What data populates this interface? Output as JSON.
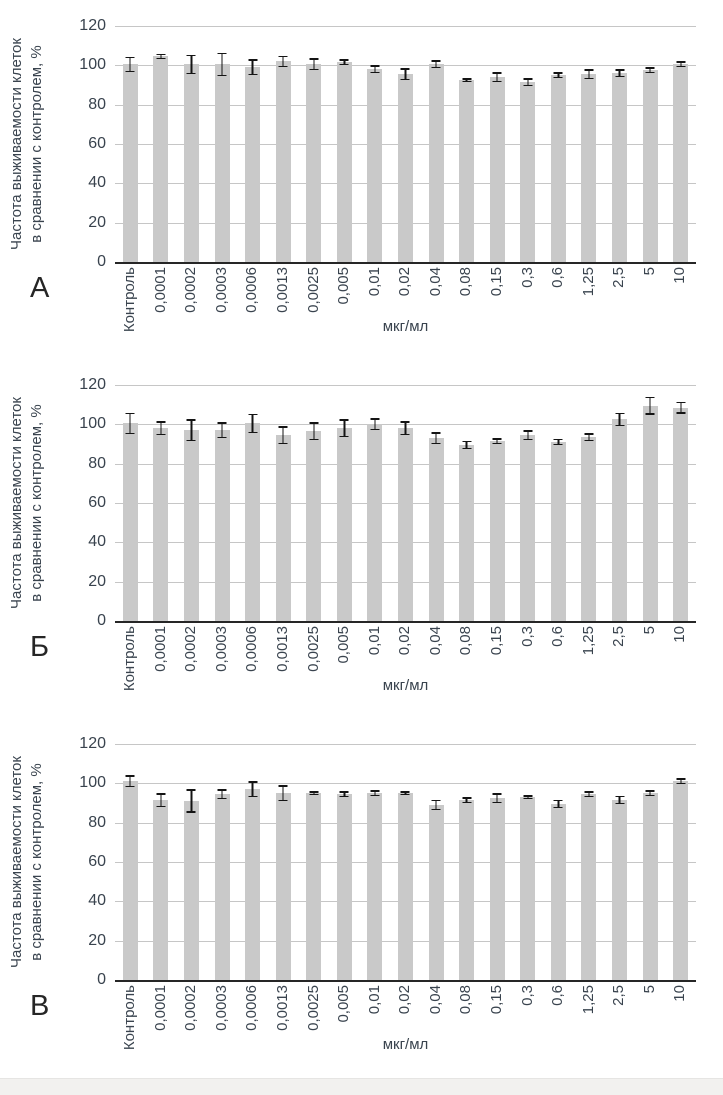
{
  "colors": {
    "bar": "#c9c9c9",
    "grid": "#c6c6c6",
    "axis": "#262626",
    "err": "#141414",
    "text": "#39434e",
    "letter": "#262626",
    "footer": "#f2f1ef"
  },
  "chart_data": [
    {
      "type": "bar",
      "panel_label": "А",
      "xlabel": "мкг/мл",
      "ylabel_line1": "Частота выживаемости клеток",
      "ylabel_line2": "в сравнении с контролем, %",
      "ylim": [
        0,
        120
      ],
      "yticks": [
        0,
        20,
        40,
        60,
        80,
        100,
        120
      ],
      "grid": true,
      "legend": "none",
      "categories": [
        "Контроль",
        "0,0001",
        "0,0002",
        "0,0003",
        "0,0006",
        "0,0013",
        "0,0025",
        "0,005",
        "0,01",
        "0,02",
        "0,04",
        "0,08",
        "0,15",
        "0,3",
        "0,6",
        "1,25",
        "2,5",
        "5",
        "10"
      ],
      "values": [
        100.5,
        104.5,
        100.5,
        100.5,
        99,
        102,
        100.5,
        101.5,
        98,
        95.5,
        100.5,
        92.5,
        94,
        91.5,
        95,
        95.5,
        96,
        97.5,
        100.5
      ],
      "errors": [
        4,
        1.5,
        5,
        6,
        4,
        3,
        3,
        1.5,
        2,
        3,
        2,
        1,
        2.5,
        2,
        1.5,
        2.5,
        2,
        1.5,
        1.5
      ]
    },
    {
      "type": "bar",
      "panel_label": "Б",
      "xlabel": "мкг/мл",
      "ylabel_line1": "Частота выживаемости клеток",
      "ylabel_line2": "в сравнении с контролем, %",
      "ylim": [
        0,
        120
      ],
      "yticks": [
        0,
        20,
        40,
        60,
        80,
        100,
        120
      ],
      "grid": true,
      "legend": "none",
      "categories": [
        "Контроль",
        "0,0001",
        "0,0002",
        "0,0003",
        "0,0006",
        "0,0013",
        "0,0025",
        "0,005",
        "0,01",
        "0,02",
        "0,04",
        "0,08",
        "0,15",
        "0,3",
        "0,6",
        "1,25",
        "2,5",
        "5",
        "10"
      ],
      "values": [
        100.5,
        98,
        97,
        97,
        100.5,
        94.5,
        96.5,
        98,
        100,
        98,
        93,
        89.5,
        91.5,
        94.5,
        91,
        93.5,
        102.5,
        109.5,
        108.5
      ],
      "errors": [
        5.5,
        3.5,
        5.5,
        4,
        5,
        4.5,
        4.5,
        4.5,
        3,
        3.5,
        3,
        2,
        1.5,
        2.5,
        1.5,
        2,
        3.5,
        4.5,
        3
      ]
    },
    {
      "type": "bar",
      "panel_label": "В",
      "xlabel": "мкг/мл",
      "ylabel_line1": "Частота выживаемости клеток",
      "ylabel_line2": "в сравнении с контролем, %",
      "ylim": [
        0,
        120
      ],
      "yticks": [
        0,
        20,
        40,
        60,
        80,
        100,
        120
      ],
      "grid": true,
      "legend": "none",
      "categories": [
        "Контроль",
        "0,0001",
        "0,0002",
        "0,0003",
        "0,0006",
        "0,0013",
        "0,0025",
        "0,005",
        "0,01",
        "0,02",
        "0,04",
        "0,08",
        "0,15",
        "0,3",
        "0,6",
        "1,25",
        "2,5",
        "5",
        "10"
      ],
      "values": [
        101,
        91.5,
        91,
        94.5,
        97,
        95,
        95,
        94.5,
        95,
        95,
        89,
        91.5,
        92.5,
        93,
        89.5,
        94.5,
        91.5,
        95,
        101
      ],
      "errors": [
        3,
        3.5,
        6,
        2.5,
        4,
        4,
        1,
        1.5,
        1.5,
        1,
        2.5,
        1.5,
        2.5,
        1,
        2,
        1.5,
        2.2,
        1.5,
        1.5
      ]
    }
  ]
}
